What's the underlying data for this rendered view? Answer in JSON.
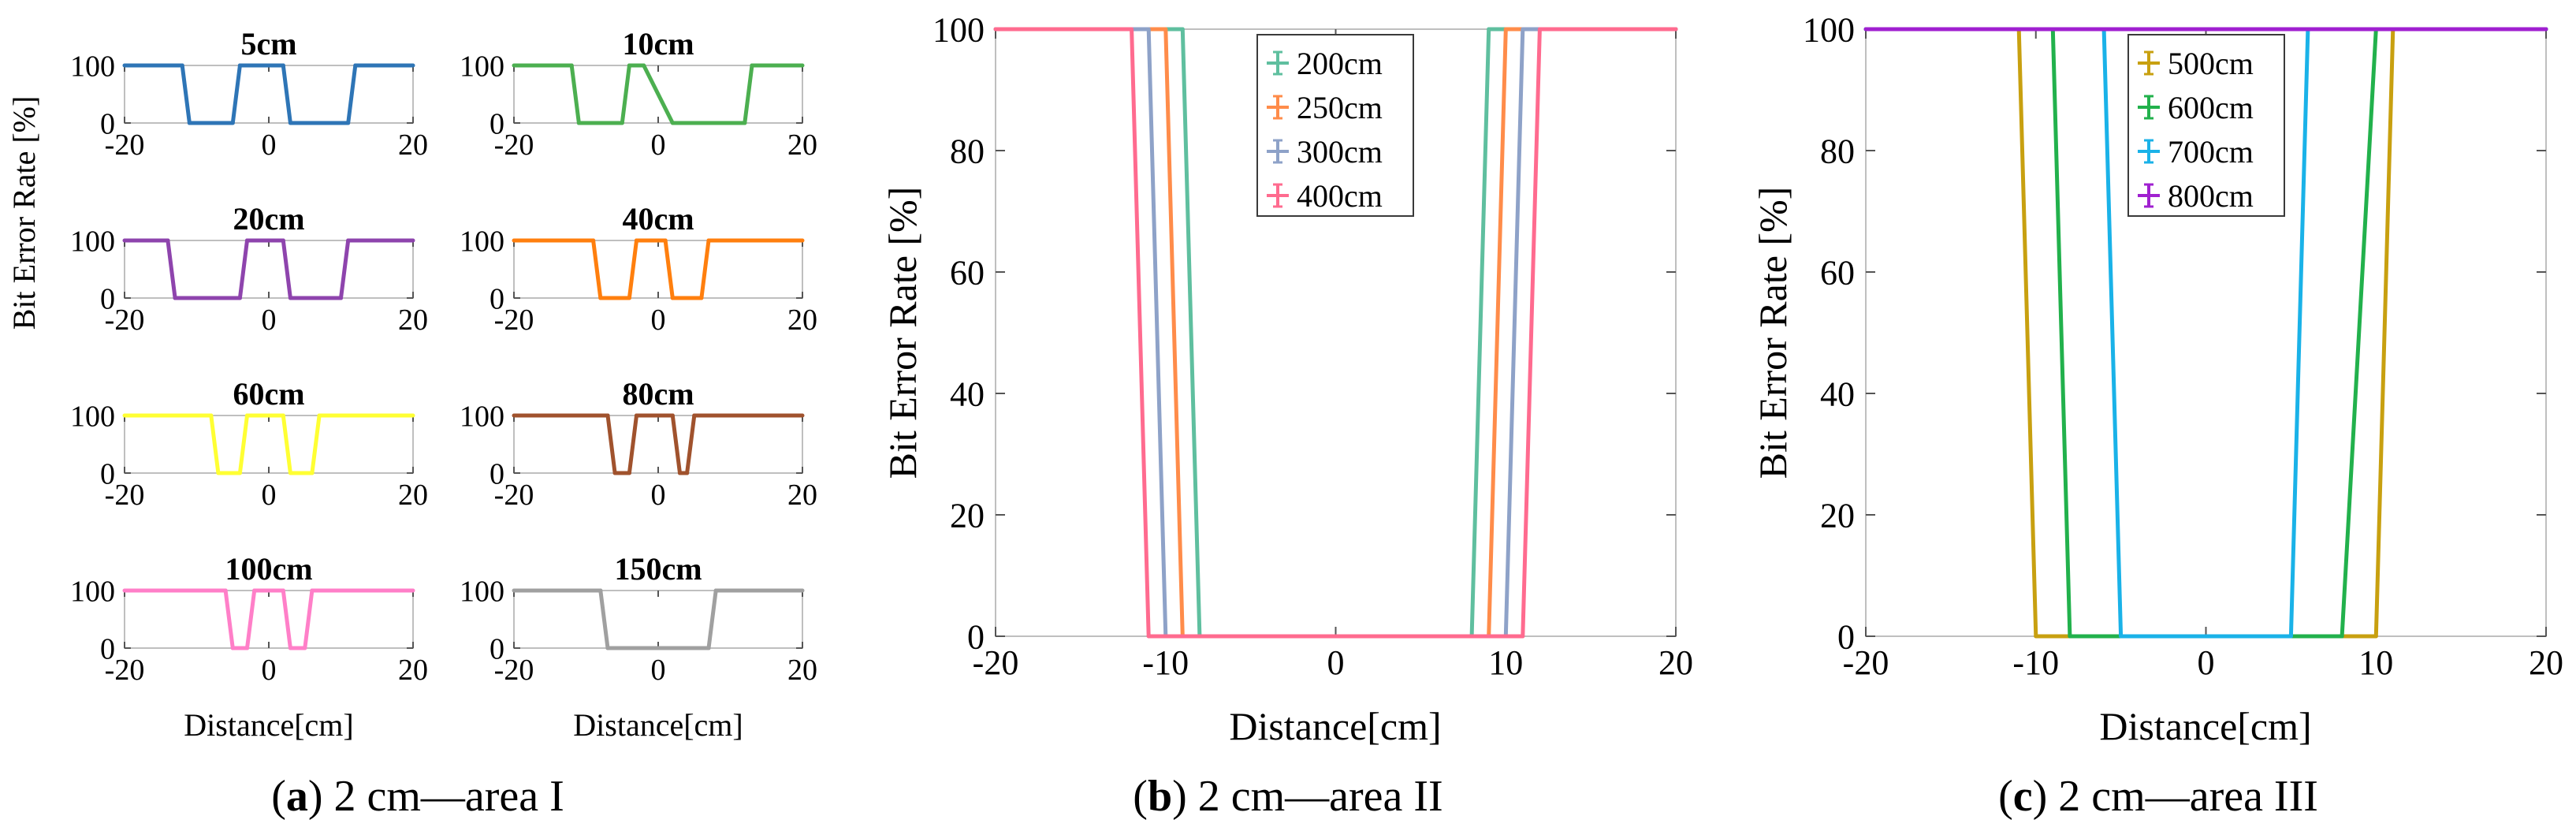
{
  "figure": {
    "panels": [
      {
        "letter": "a",
        "caption": "2 cm—area I"
      },
      {
        "letter": "b",
        "caption": "2 cm—area II"
      },
      {
        "letter": "c",
        "caption": "2 cm—area III"
      }
    ]
  },
  "chart_data": [
    {
      "type": "line",
      "panel": "a",
      "title": "2 cm—area I",
      "xlabel": "Distance[cm]",
      "ylabel": "Bit Error Rate [%]",
      "xlim": [
        -20,
        20
      ],
      "ylim": [
        0,
        100
      ],
      "xticks": [
        "-20",
        "0",
        "20"
      ],
      "yticks": [
        "0",
        "100"
      ],
      "subplots": [
        {
          "name": "5cm",
          "color": "#2e75b6",
          "x": [
            -20,
            -12,
            -11,
            -5,
            -4,
            -3,
            -2,
            2,
            3,
            4,
            5,
            11,
            12,
            20
          ],
          "values": [
            100,
            100,
            0,
            0,
            100,
            100,
            100,
            100,
            0,
            0,
            0,
            0,
            100,
            100
          ]
        },
        {
          "name": "10cm",
          "color": "#4caf50",
          "x": [
            -20,
            -12,
            -11,
            -5,
            -4,
            -2,
            2,
            3,
            12,
            13,
            20
          ],
          "values": [
            100,
            100,
            0,
            0,
            100,
            100,
            0,
            0,
            0,
            100,
            100
          ]
        },
        {
          "name": "20cm",
          "color": "#8e44ad",
          "x": [
            -20,
            -14,
            -13,
            -4,
            -3,
            0,
            2,
            3,
            10,
            11,
            20
          ],
          "values": [
            100,
            100,
            0,
            0,
            100,
            100,
            100,
            0,
            0,
            100,
            100
          ]
        },
        {
          "name": "40cm",
          "color": "#ff7f0e",
          "x": [
            -20,
            -9,
            -8,
            -4,
            -3,
            -1,
            1,
            2,
            6,
            7,
            20
          ],
          "values": [
            100,
            100,
            0,
            0,
            100,
            100,
            100,
            0,
            0,
            100,
            100
          ]
        },
        {
          "name": "60cm",
          "color": "#ffff33",
          "x": [
            -20,
            -8,
            -7,
            -4,
            -3,
            2,
            3,
            6,
            7,
            20
          ],
          "values": [
            100,
            100,
            0,
            0,
            100,
            100,
            0,
            0,
            100,
            100
          ]
        },
        {
          "name": "80cm",
          "color": "#a0522d",
          "x": [
            -20,
            -7,
            -6,
            -4,
            -3,
            1,
            2,
            3,
            4,
            5,
            20
          ],
          "values": [
            100,
            100,
            0,
            0,
            100,
            100,
            100,
            0,
            0,
            100,
            100
          ]
        },
        {
          "name": "100cm",
          "color": "#ff7fc8",
          "x": [
            -20,
            -6,
            -5,
            -3,
            -2,
            2,
            3,
            5,
            6,
            20
          ],
          "values": [
            100,
            100,
            0,
            0,
            100,
            100,
            0,
            0,
            100,
            100
          ]
        },
        {
          "name": "150cm",
          "color": "#a0a0a0",
          "x": [
            -20,
            -8,
            -7,
            7,
            8,
            20
          ],
          "values": [
            100,
            100,
            0,
            0,
            100,
            100
          ]
        }
      ]
    },
    {
      "type": "line",
      "panel": "b",
      "title": "2 cm—area II",
      "xlabel": "Distance[cm]",
      "ylabel": "Bit Error Rate [%]",
      "xlim": [
        -20,
        20
      ],
      "ylim": [
        0,
        100
      ],
      "xticks": [
        "-20",
        "-10",
        "0",
        "10",
        "20"
      ],
      "yticks": [
        "0",
        "20",
        "40",
        "60",
        "80",
        "100"
      ],
      "legend": "top-center",
      "series": [
        {
          "name": "200cm",
          "color": "#5fbf9f",
          "x": [
            -20,
            -9,
            -8,
            8,
            9,
            20
          ],
          "values": [
            100,
            100,
            0,
            0,
            100,
            100
          ]
        },
        {
          "name": "250cm",
          "color": "#ff8c4a",
          "x": [
            -20,
            -10,
            -9,
            9,
            10,
            20
          ],
          "values": [
            100,
            100,
            0,
            0,
            100,
            100
          ]
        },
        {
          "name": "300cm",
          "color": "#8ea2c8",
          "x": [
            -20,
            -11,
            -10,
            10,
            11,
            20
          ],
          "values": [
            100,
            100,
            0,
            0,
            100,
            100
          ]
        },
        {
          "name": "400cm",
          "color": "#ff6b8f",
          "x": [
            -20,
            -12,
            -11,
            11,
            12,
            20
          ],
          "values": [
            100,
            100,
            0,
            0,
            100,
            100
          ]
        }
      ]
    },
    {
      "type": "line",
      "panel": "c",
      "title": "2 cm—area III",
      "xlabel": "Distance[cm]",
      "ylabel": "Bit Error Rate [%]",
      "xlim": [
        -20,
        20
      ],
      "ylim": [
        0,
        100
      ],
      "xticks": [
        "-20",
        "-10",
        "0",
        "10",
        "20"
      ],
      "yticks": [
        "0",
        "20",
        "40",
        "60",
        "80",
        "100"
      ],
      "legend": "top-left",
      "series": [
        {
          "name": "500cm",
          "color": "#c8a010",
          "x": [
            -20,
            -11,
            -10,
            10,
            11,
            20
          ],
          "values": [
            100,
            100,
            0,
            0,
            100,
            100
          ]
        },
        {
          "name": "600cm",
          "color": "#22b14c",
          "x": [
            -20,
            -9,
            -8,
            8,
            10,
            20
          ],
          "values": [
            100,
            100,
            0,
            0,
            100,
            100
          ]
        },
        {
          "name": "700cm",
          "color": "#1ab2e8",
          "x": [
            -20,
            -6,
            -5,
            5,
            6,
            20
          ],
          "values": [
            100,
            100,
            0,
            0,
            100,
            100
          ]
        },
        {
          "name": "800cm",
          "color": "#a020d0",
          "x": [
            -20,
            20
          ],
          "values": [
            100,
            100
          ]
        }
      ]
    }
  ]
}
